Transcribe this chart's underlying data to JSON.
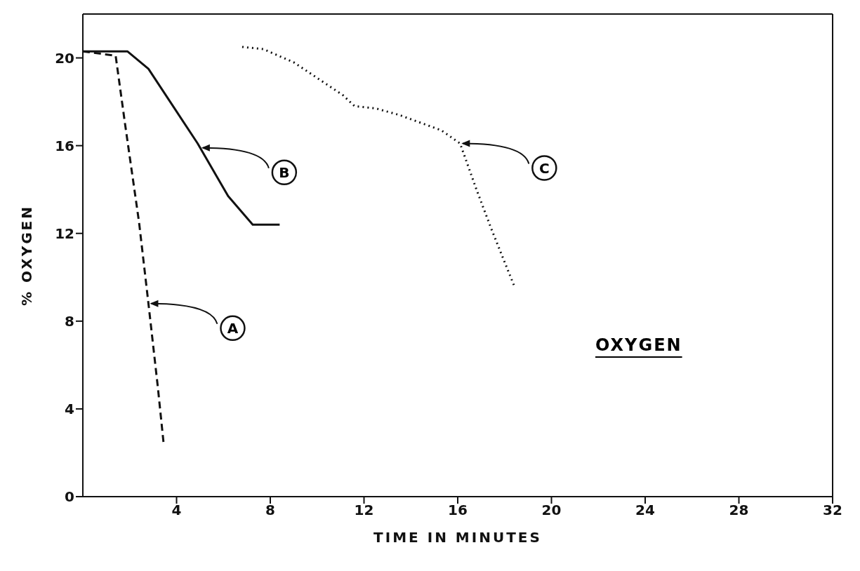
{
  "chart_data": {
    "type": "line",
    "xlabel": "TIME IN MINUTES",
    "ylabel": "% OXYGEN",
    "xlim": [
      0,
      32
    ],
    "xticks": [
      4,
      8,
      12,
      16,
      20,
      24,
      28,
      32
    ],
    "ylim": [
      0,
      22
    ],
    "yticks": [
      0,
      4,
      8,
      12,
      16,
      20
    ],
    "series": [
      {
        "color": "#111111",
        "line_style": "dashed",
        "x": [
          0,
          1.4,
          1.8,
          2.4,
          2.8,
          3.2,
          3.45
        ],
        "values": [
          20.3,
          20.1,
          17,
          12.5,
          8.8,
          5,
          2.4
        ]
      },
      {
        "color": "#111111",
        "line_style": "solid",
        "x": [
          0,
          1.9,
          2.8,
          4.9,
          6.2,
          7.25,
          8.4
        ],
        "values": [
          20.3,
          20.3,
          19.5,
          16.1,
          13.7,
          12.4,
          12.4
        ]
      },
      {
        "color": "#111111",
        "line_style": "dotted",
        "x": [
          6.8,
          7.7,
          9,
          11.1,
          11.6,
          12.5,
          13.5,
          15.3,
          16.1,
          16.8,
          17.4,
          18.45
        ],
        "values": [
          20.5,
          20.4,
          19.8,
          18.3,
          17.8,
          17.7,
          17.4,
          16.7,
          16.1,
          14,
          12.3,
          9.5
        ]
      }
    ],
    "annotations": [
      {
        "text": "A",
        "x": 2.8,
        "y": 8.8
      },
      {
        "text": "B",
        "x": 5,
        "y": 15.9
      },
      {
        "text": "C",
        "x": 16.1,
        "y": 16.1
      },
      "OXYGEN"
    ]
  }
}
